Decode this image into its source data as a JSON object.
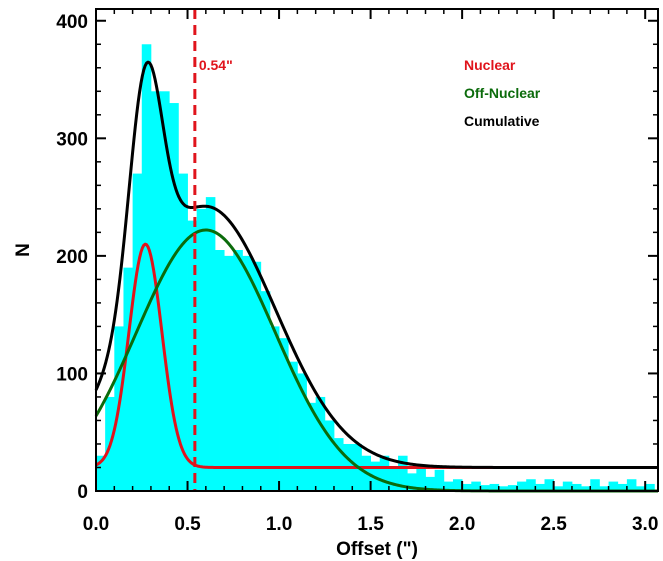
{
  "chart_data": {
    "type": "histogram",
    "xlabel": "Offset (\")",
    "ylabel": "N",
    "xlim": [
      0.0,
      3.07
    ],
    "ylim": [
      0,
      410
    ],
    "xticks": [
      {
        "value": 0.0,
        "label": "0.0"
      },
      {
        "value": 0.5,
        "label": "0.5"
      },
      {
        "value": 1.0,
        "label": "1.0"
      },
      {
        "value": 1.5,
        "label": "1.5"
      },
      {
        "value": 2.0,
        "label": "2.0"
      },
      {
        "value": 2.5,
        "label": "2.5"
      },
      {
        "value": 3.0,
        "label": "3.0"
      }
    ],
    "yticks": [
      {
        "value": 0,
        "label": "0"
      },
      {
        "value": 100,
        "label": "100"
      },
      {
        "value": 200,
        "label": "200"
      },
      {
        "value": 300,
        "label": "300"
      },
      {
        "value": 400,
        "label": "400"
      }
    ],
    "histogram": {
      "bin_width": 0.05,
      "color": "#00ffff",
      "x_start": 0.0,
      "counts": [
        30,
        80,
        140,
        190,
        270,
        380,
        340,
        340,
        330,
        270,
        230,
        240,
        250,
        205,
        200,
        205,
        200,
        195,
        170,
        140,
        130,
        110,
        100,
        75,
        80,
        60,
        45,
        40,
        40,
        30,
        25,
        30,
        20,
        30,
        15,
        20,
        12,
        18,
        8,
        10,
        6,
        8,
        5,
        6,
        4,
        5,
        8,
        10,
        6,
        10,
        4,
        8,
        6,
        4,
        10,
        4,
        8,
        6,
        10,
        4,
        6
      ]
    },
    "series": [
      {
        "name": "Nuclear",
        "color": "#e0141c",
        "model": "gaussian",
        "amplitude": 190,
        "mean": 0.27,
        "sigma": 0.09,
        "baseline": 20
      },
      {
        "name": "Off-Nuclear",
        "color": "#0b6b0b",
        "model": "gaussian",
        "amplitude": 222,
        "mean": 0.6,
        "sigma": 0.38,
        "baseline": 0
      },
      {
        "name": "Cumulative",
        "color": "#000000",
        "model": "sum"
      }
    ],
    "vline": {
      "x": 0.54,
      "label": "0.54\"",
      "color": "#e0141c",
      "style": "dashed"
    },
    "legend_position": "top-right"
  }
}
